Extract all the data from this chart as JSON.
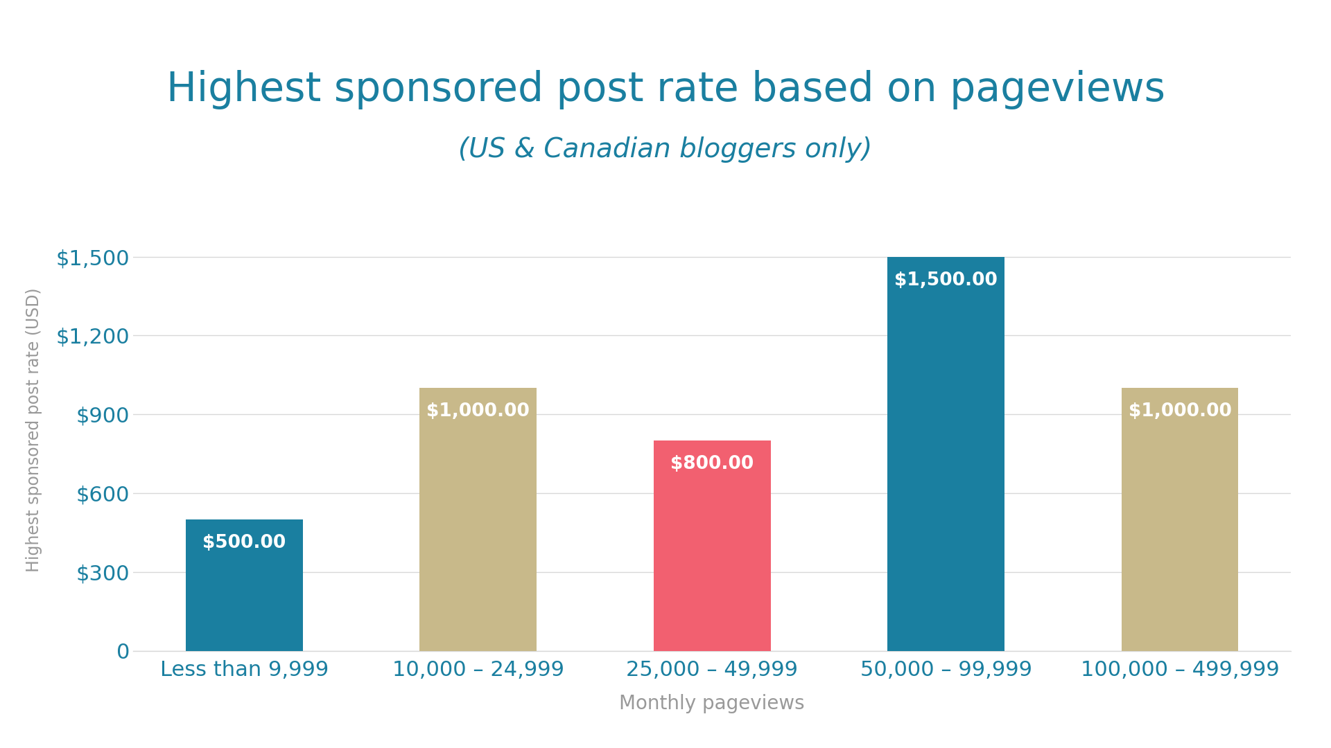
{
  "title": "Highest sponsored post rate based on pageviews",
  "subtitle": "(US & Canadian bloggers only)",
  "xlabel": "Monthly pageviews",
  "ylabel": "Highest sponsored post rate (USD)",
  "categories": [
    "Less than 9,999",
    "10,000 – 24,999",
    "25,000 – 49,999",
    "50,000 – 99,999",
    "100,000 – 499,999"
  ],
  "values": [
    500,
    1000,
    800,
    1500,
    1000
  ],
  "bar_colors": [
    "#1a7fa0",
    "#c8b98a",
    "#f26070",
    "#1a7fa0",
    "#c8b98a"
  ],
  "label_color": "#ffffff",
  "title_color": "#1a7fa0",
  "subtitle_color": "#1a7fa0",
  "axis_label_color": "#999999",
  "tick_color": "#1a7fa0",
  "background_color": "#ffffff",
  "grid_color": "#d8d8d8",
  "ylim": [
    0,
    1680
  ],
  "yticks": [
    0,
    300,
    600,
    900,
    1200,
    1500
  ],
  "title_fontsize": 42,
  "subtitle_fontsize": 28,
  "xlabel_fontsize": 20,
  "ylabel_fontsize": 17,
  "tick_fontsize": 22,
  "bar_label_fontsize": 19,
  "bar_width": 0.5
}
